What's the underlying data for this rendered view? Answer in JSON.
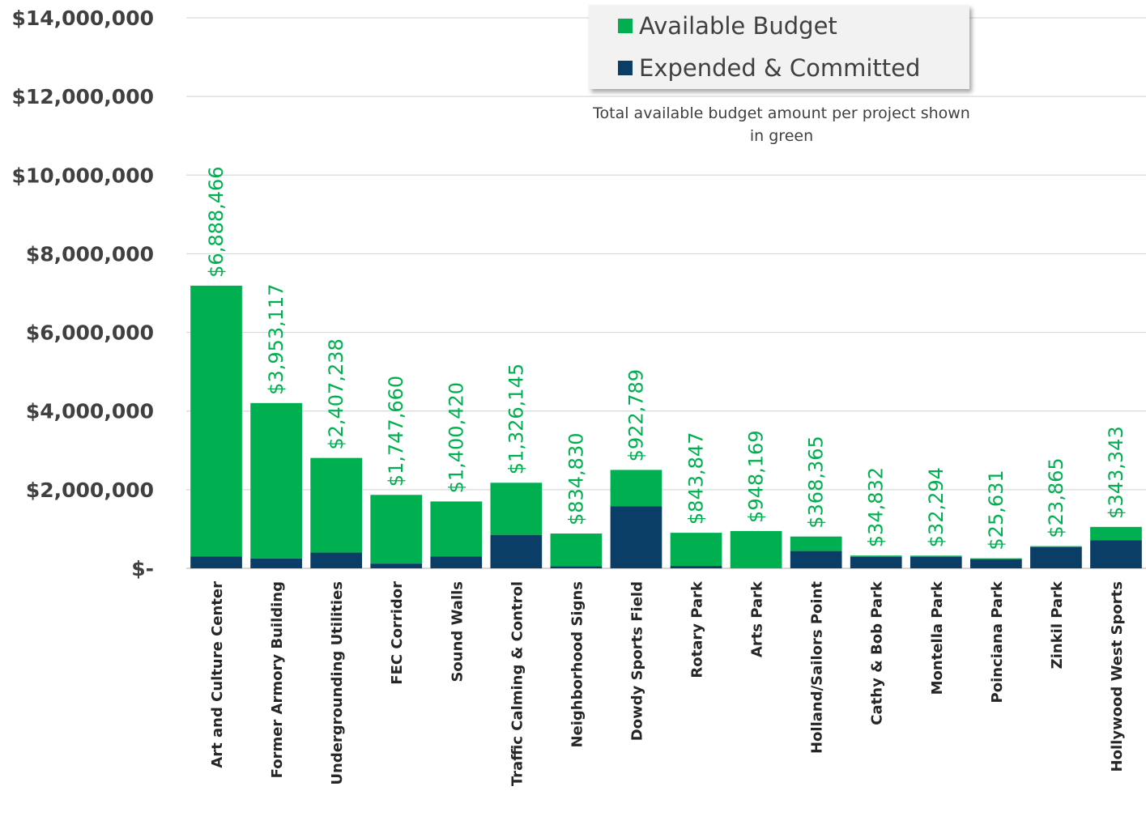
{
  "chart_data": {
    "type": "bar",
    "stacked": true,
    "categories": [
      "Art and Culture Center",
      "Former Armory Building",
      "Undergrounding Utilities",
      "FEC Corridor",
      "Sound Walls",
      "Traffic Calming & Control",
      "Neighborhood Signs",
      "Dowdy Sports Field",
      "Rotary Park",
      "Arts Park",
      "Holland/Sailors Point",
      "Cathy & Bob Park",
      "Montella Park",
      "Poinciana Park",
      "Zinkil Park",
      "Hollywood West Sports"
    ],
    "series": [
      {
        "name": "Expended & Committed",
        "color": "#0b3e66",
        "values": [
          300000,
          250000,
          400000,
          120000,
          300000,
          850000,
          50000,
          1580000,
          60000,
          0,
          440000,
          290000,
          290000,
          230000,
          540000,
          710000
        ]
      },
      {
        "name": "Available Budget",
        "color": "#00b050",
        "values": [
          6888466,
          3953117,
          2407238,
          1747660,
          1400420,
          1326145,
          834830,
          922789,
          843847,
          948169,
          368365,
          34832,
          32294,
          25631,
          23865,
          343343
        ]
      }
    ],
    "data_labels": [
      "$6,888,466",
      "$3,953,117",
      "$2,407,238",
      "$1,747,660",
      "$1,400,420",
      "$1,326,145",
      "$834,830",
      "$922,789",
      "$843,847",
      "$948,169",
      "$368,365",
      "$34,832",
      "$32,294",
      "$25,631",
      "$23,865",
      "$343,343"
    ],
    "y_ticks": [
      {
        "value": 0,
        "label": "$-"
      },
      {
        "value": 2000000,
        "label": "$2,000,000"
      },
      {
        "value": 4000000,
        "label": "$4,000,000"
      },
      {
        "value": 6000000,
        "label": "$6,000,000"
      },
      {
        "value": 8000000,
        "label": "$8,000,000"
      },
      {
        "value": 10000000,
        "label": "$10,000,000"
      },
      {
        "value": 12000000,
        "label": "$12,000,000"
      },
      {
        "value": 14000000,
        "label": "$14,000,000"
      }
    ],
    "ylim": [
      0,
      14000000
    ],
    "grid": true,
    "legend_position": "top-right",
    "legend": [
      "Available Budget",
      "Expended & Committed"
    ],
    "annotation": "Total available budget amount per project shown in green",
    "colors": {
      "available": "#00b050",
      "expended": "#0b3e66",
      "grid": "#d9d9d9",
      "axis_text": "#404040"
    }
  }
}
